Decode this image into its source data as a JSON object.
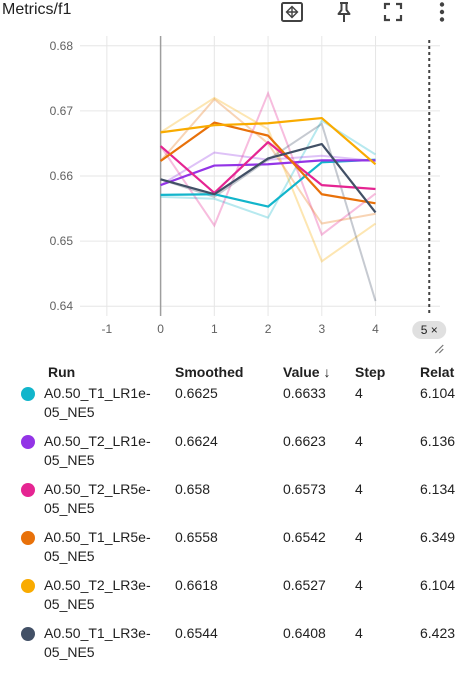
{
  "header": {
    "title": "Metrics/f1",
    "icons": [
      "fit-domain-icon",
      "pin-icon",
      "fullscreen-icon",
      "more-vert-icon"
    ]
  },
  "chart_data": {
    "type": "line",
    "title": "Metrics/f1",
    "x_ticks": [
      "-1",
      "0",
      "1",
      "2",
      "3",
      "4",
      "5"
    ],
    "y_ticks": [
      "0.68",
      "0.67",
      "0.66",
      "0.65",
      "0.64"
    ],
    "xlim": [
      -1.5,
      5.2
    ],
    "ylim": [
      0.6385,
      0.6815
    ],
    "grid": true,
    "step_marker": {
      "x": 5,
      "label": "5 ×"
    },
    "series": [
      {
        "name": "A0.50_T1_LR1e-05_NE5",
        "color": "#12B5CB",
        "smoothed": [
          0.6571,
          0.6572,
          0.6553,
          0.6621,
          0.6625
        ],
        "raw": [
          0.6568,
          0.6565,
          0.6536,
          0.6685,
          0.6633
        ]
      },
      {
        "name": "A0.50_T2_LR1e-05_NE5",
        "color": "#9334E6",
        "smoothed": [
          0.6586,
          0.6616,
          0.6618,
          0.6624,
          0.6624
        ],
        "raw": [
          0.6586,
          0.6636,
          0.6625,
          0.6631,
          0.6623
        ]
      },
      {
        "name": "A0.50_T2_LR5e-05_NE5",
        "color": "#E52592",
        "smoothed": [
          0.6646,
          0.6574,
          0.6652,
          0.6586,
          0.658
        ],
        "raw": [
          0.6646,
          0.6524,
          0.6727,
          0.651,
          0.6573
        ]
      },
      {
        "name": "A0.50_T1_LR5e-05_NE5",
        "color": "#E8710A",
        "smoothed": [
          0.6623,
          0.6682,
          0.6662,
          0.6572,
          0.6558
        ],
        "raw": [
          0.6623,
          0.6718,
          0.665,
          0.6527,
          0.6542
        ]
      },
      {
        "name": "A0.50_T2_LR3e-05_NE5",
        "color": "#F9AB00",
        "smoothed": [
          0.6667,
          0.6678,
          0.6681,
          0.6689,
          0.6618
        ],
        "raw": [
          0.6667,
          0.672,
          0.6672,
          0.6469,
          0.6527
        ]
      },
      {
        "name": "A0.50_T1_LR3e-05_NE5",
        "color": "#425066",
        "smoothed": [
          0.6595,
          0.6572,
          0.6627,
          0.6649,
          0.6544
        ],
        "raw": [
          0.6595,
          0.6568,
          0.6625,
          0.668,
          0.6408
        ]
      }
    ]
  },
  "table": {
    "headers": {
      "run": "Run",
      "smoothed": "Smoothed",
      "value": "Value ↓",
      "step": "Step",
      "relative": "Relat"
    },
    "rows": [
      {
        "run": "A0.50_T1_LR1e-05_NE5",
        "color": "#12B5CB",
        "smoothed": "0.6625",
        "value": "0.6633",
        "step": "4",
        "relative": "6.104"
      },
      {
        "run": "A0.50_T2_LR1e-05_NE5",
        "color": "#9334E6",
        "smoothed": "0.6624",
        "value": "0.6623",
        "step": "4",
        "relative": "6.136"
      },
      {
        "run": "A0.50_T2_LR5e-05_NE5",
        "color": "#E52592",
        "smoothed": "0.658",
        "value": "0.6573",
        "step": "4",
        "relative": "6.134"
      },
      {
        "run": "A0.50_T1_LR5e-05_NE5",
        "color": "#E8710A",
        "smoothed": "0.6558",
        "value": "0.6542",
        "step": "4",
        "relative": "6.349"
      },
      {
        "run": "A0.50_T2_LR3e-05_NE5",
        "color": "#F9AB00",
        "smoothed": "0.6618",
        "value": "0.6527",
        "step": "4",
        "relative": "6.104"
      },
      {
        "run": "A0.50_T1_LR3e-05_NE5",
        "color": "#425066",
        "smoothed": "0.6544",
        "value": "0.6408",
        "step": "4",
        "relative": "6.423"
      }
    ]
  }
}
